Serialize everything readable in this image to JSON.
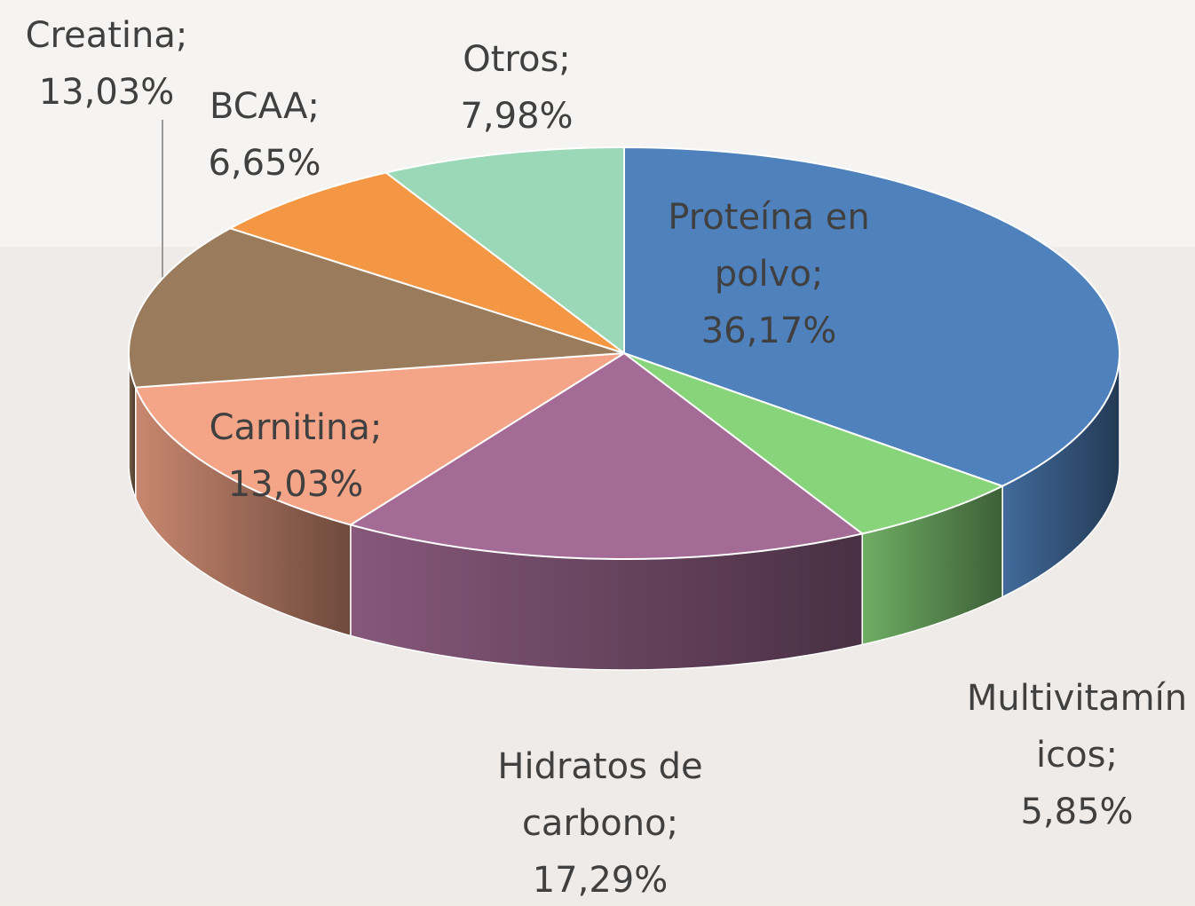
{
  "chart_data": {
    "type": "pie3d",
    "categories": [
      "Proteína en polvo",
      "Multivitamínicos",
      "Hidratos de carbono",
      "Carnitina",
      "Creatina",
      "BCAA",
      "Otros"
    ],
    "values": [
      36.17,
      5.85,
      17.29,
      13.03,
      13.03,
      6.65,
      7.98
    ],
    "value_labels": [
      "36,17%",
      "5,85%",
      "17,29%",
      "13,03%",
      "13,03%",
      "6,65%",
      "7,98%"
    ],
    "separator": ";",
    "colors": [
      "#4f81bd",
      "#87d47a",
      "#a36b95",
      "#f4a587",
      "#9a7b5b",
      "#f39745",
      "#9bd8b7"
    ]
  }
}
